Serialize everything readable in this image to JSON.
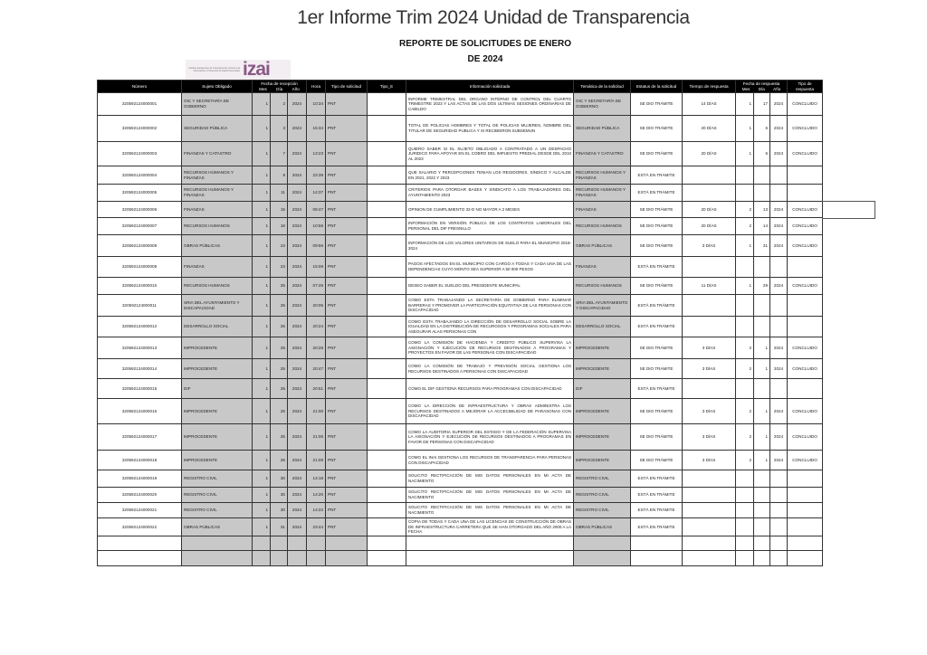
{
  "header": {
    "title": "1er Informe Trim 2024 Unidad de Transparencia",
    "subtitle_line1": "REPORTE DE SOLICITUDES  DE ENERO",
    "subtitle_line2": "DE 2024",
    "logo_text": "izai",
    "logo_small_text": "Instituto Zacatecano de Transparencia, Acceso a la Información y Protección de Datos Personales"
  },
  "columns": {
    "numero": "Número",
    "sujeto": "Sujeto Obligado",
    "fecha_recepcion": "Fecha de recepción",
    "mes": "Mes",
    "dia": "Día",
    "anio": "Año",
    "hora": "Hora",
    "tipo_solicitud": "Tipo de solicitud",
    "tipo_e": "Tipo_E",
    "info": "Información solicitada",
    "tematica": "Temática de la solicitud",
    "estatus": "Estatus de la solicitud",
    "tiempo": "Tiempo de respuesta",
    "fecha_respuesta": "Fecha de respuesta",
    "tipo_respuesta": "Tipo de respuesta"
  },
  "rows": [
    {
      "numero": "320592124000001",
      "sujeto": "OIC Y SECRETARÍA DE GOBIERNO",
      "mes": "1",
      "dia": "2",
      "anio": "2024",
      "hora": "10:34",
      "tipo": "PNT",
      "tipo_e": "",
      "info": "INFORME TRIMESTRAL DEL ORGANO INTERNO DE CONTROL DEL CUARTO TRIMESTRE 2023 Y LAS ACTAS DE LAS DOS ULTIMAS SESIONES ORDINARIAS DE CABILDO",
      "tematica": "OIC Y SECRETARÍA DE GOBIERNO",
      "estatus": "SE DIO TRÁMITE",
      "tiempo": "14 DÍAS",
      "r_mes": "1",
      "r_dia": "17",
      "r_anio": "2024",
      "tipo_resp": "CONCLUIDO"
    },
    {
      "numero": "320592124000002",
      "sujeto": "SEGURIDAD PÚBLICA",
      "mes": "1",
      "dia": "3",
      "anio": "2024",
      "hora": "15:34",
      "tipo": "PNT",
      "tipo_e": "",
      "info": "TOTAL DE POLICIAS HOMBRES Y TOTAL DE POLICIAS MUJERES, NOMBRE DEL TITULAR DE SEGURIDAD PUBLICA Y SI RECIBIERON SUBSEMUN",
      "tematica": "SEGURIDAD PÚBLICA",
      "estatus": "SE DIO TRÁMITE",
      "tiempo": "20 DÍAS",
      "r_mes": "1",
      "r_dia": "6",
      "r_anio": "2024",
      "tipo_resp": "CONCLUIDO"
    },
    {
      "numero": "320592124000003",
      "sujeto": "FINANZAS Y CATASTRO",
      "mes": "1",
      "dia": "7",
      "anio": "2024",
      "hora": "13:23",
      "tipo": "PNT",
      "tipo_e": "",
      "info": "QUIERO SABER SI EL SUJETO OBLIGADO A CONTRATADO A UN DESPACHO JURIDICO PARA APOYAR EN EL COBRO DEL IMPUESTO PREDIAL DESDE DEL 2010 AL 2023",
      "tematica": "FINANZAS Y CATASTRO",
      "estatus": "SE DIO TRÁMITE",
      "tiempo": "20 DÍAS",
      "r_mes": "1",
      "r_dia": "6",
      "r_anio": "2024",
      "tipo_resp": "CONCLUIDO"
    },
    {
      "numero": "320592124000004",
      "sujeto": "RECURSOS HUMANOS Y FINANZAS",
      "mes": "1",
      "dia": "8",
      "anio": "2024",
      "hora": "23:39",
      "tipo": "PNT",
      "tipo_e": "",
      "info": "QUE SALARIO Y PERCEPCIONES TENIAN LOS REGIDORES, SÍNDICO Y ALCALDE EN 2021, 2022 Y 2023",
      "tematica": "RECURSOS HUMANOS Y FINANZAS",
      "estatus": "ESTÁ EN TRÁMITE",
      "tiempo": "",
      "r_mes": "",
      "r_dia": "",
      "r_anio": "",
      "tipo_resp": ""
    },
    {
      "numero": "320592124000005",
      "sujeto": "RECURSOS HUMANOS Y FINANZAS",
      "mes": "1",
      "dia": "11",
      "anio": "2024",
      "hora": "14:37",
      "tipo": "PNT",
      "tipo_e": "",
      "info": "CRITERIOS PARA OTORGAR BASES Y SINDICATO A LOS TRABAJADORES DEL AYUNTAMIENTO 2023",
      "tematica": "RECURSOS HUMANOS Y FINANZAS",
      "estatus": "ESTÁ EN TRÁMITE",
      "tiempo": "",
      "r_mes": "",
      "r_dia": "",
      "r_anio": "",
      "tipo_resp": ""
    },
    {
      "numero": "320592124000006",
      "sujeto": "FINANZAS",
      "mes": "1",
      "dia": "15",
      "anio": "2024",
      "hora": "09:47",
      "tipo": "PNT",
      "tipo_e": "",
      "info": "OPINION DE CUMPLIMIENTO 32-D NO MAYOR A 2 MESES",
      "tematica": "FINANZAS",
      "estatus": "SE DIO TRÁMITE",
      "tiempo": "20 DÍAS",
      "r_mes": "2",
      "r_dia": "13",
      "r_anio": "2024",
      "tipo_resp": "CONCLUIDO"
    },
    {
      "numero": "320592124000007",
      "sujeto": "RECURSOS HUMANOS",
      "mes": "1",
      "dia": "16",
      "anio": "2024",
      "hora": "10:56",
      "tipo": "PNT",
      "tipo_e": "",
      "info": "INFORMACIÓN EN VERSIÓN PÚBLICA DE LOS CONTRATOS LABORALES DEL PERSONAL DEL DIF FRESNILLO",
      "tematica": "RECURSOS HUMANOS",
      "estatus": "SE DIO TRÁMITE",
      "tiempo": "20 DÍAS",
      "r_mes": "2",
      "r_dia": "14",
      "r_anio": "2024",
      "tipo_resp": "CONCLUIDO"
    },
    {
      "numero": "320592124000008",
      "sujeto": "OBRAS PÚBLICAS",
      "mes": "1",
      "dia": "23",
      "anio": "2024",
      "hora": "09:56",
      "tipo": "PNT",
      "tipo_e": "",
      "info": "INFORMACIÓN DE LOS VALORES UNITARIOS DE SUELO PARA EL MUNICIPIO 2018- 2024",
      "tematica": "OBRAS PÚBLICAS",
      "estatus": "SE DIO TRÁMITE",
      "tiempo": "3 DÍAS",
      "r_mes": "1",
      "r_dia": "31",
      "r_anio": "2024",
      "tipo_resp": "CONCLUIDO"
    },
    {
      "numero": "320592124000009",
      "sujeto": "FINANZAS",
      "mes": "1",
      "dia": "23",
      "anio": "2024",
      "hora": "15:09",
      "tipo": "PNT",
      "tipo_e": "",
      "info": "PAGOS AFECTADOS EN EL MUNICIPIO CON CARGO A TODAS Y CADA UNA DE LAS DEPENDENCIAS CUYO MONTO SEA SUPERIOR A 50 000 PESOS",
      "tematica": "FINANZAS",
      "estatus": "ESTÁ EN TRÁMITE",
      "tiempo": "",
      "r_mes": "",
      "r_dia": "",
      "r_anio": "",
      "tipo_resp": ""
    },
    {
      "numero": "320592124000010",
      "sujeto": "RECURSOS HUMANOS",
      "mes": "1",
      "dia": "25",
      "anio": "2024",
      "hora": "07:49",
      "tipo": "PNT",
      "tipo_e": "",
      "info": "DESEO SABER EL SUELDO DEL PRESIDENTE MUNICIPAL",
      "tematica": "RECURSOS HUMANOS",
      "estatus": "SE DIO TRÁMITE",
      "tiempo": "11 DÍAS",
      "r_mes": "1",
      "r_dia": "29",
      "r_anio": "2024",
      "tipo_resp": "CONCLUIDO"
    },
    {
      "numero": "320592124000011",
      "sujeto": "SRIA DEL AYUNTAMIENTO Y DISCAPACIDAD",
      "mes": "1",
      "dia": "25",
      "anio": "2024",
      "hora": "20:05",
      "tipo": "PNT",
      "tipo_e": "",
      "info": "COMO ESTA TRABAJANDO LA SECRETARÍA DE GOBIERNO PARA ELIMINAR BARRERAS Y PROMOVER LA PARTICIPACIÓN EQUITATIVA DE LAS PERSONAS CON DISCAPACIDAD",
      "tematica": "SRIA DEL AYUNTAMIENTO Y DISCAPACIDAD",
      "estatus": "ESTÁ EN TRÁMITE",
      "tiempo": "",
      "r_mes": "",
      "r_dia": "",
      "r_anio": "",
      "tipo_resp": ""
    },
    {
      "numero": "320592124000012",
      "sujeto": "DESARROLLO SOCIAL",
      "mes": "1",
      "dia": "25",
      "anio": "2024",
      "hora": "20:24",
      "tipo": "PNT",
      "tipo_e": "",
      "info": "COMO ESTA TRABAJANDO LA DIRECCIÓN DE DESARROLLO SOCIAL SOBRE LA IGUALDAD EN LA DISTRIBUCIÓN DE RECUROSOS Y PROGRAMAS SOCIALES PARA ASEGURAR ALAS PERSONAS CON",
      "tematica": "DESARROLLO SOCIAL",
      "estatus": "ESTÁ EN TRÁMITE",
      "tiempo": "",
      "r_mes": "",
      "r_dia": "",
      "r_anio": "",
      "tipo_resp": ""
    },
    {
      "numero": "320592124000013",
      "sujeto": "IMPROCEDENTE",
      "mes": "1",
      "dia": "25",
      "anio": "2024",
      "hora": "20:28",
      "tipo": "PNT",
      "tipo_e": "",
      "info": "COMO LA COMISIÓN DE HACIENDA Y CREDITO PÚBLICO SUPERVISA LA ASIGNACIÓN Y EJECUCIÓN DE RECURSOS DESTINADOS A PROGRAMAS Y PROYECTOS EN FAVOR DE LAS PERSONAS CON DISCAPACIDAD",
      "tematica": "IMPROCEDENTE",
      "estatus": "SE DIO TRÁMITE",
      "tiempo": "3 DÍAS",
      "r_mes": "2",
      "r_dia": "1",
      "r_anio": "2024",
      "tipo_resp": "CONCLUIDO"
    },
    {
      "numero": "320592124000014",
      "sujeto": "IMPROCEDENTE",
      "mes": "1",
      "dia": "25",
      "anio": "2024",
      "hora": "20:47",
      "tipo": "PNT",
      "tipo_e": "",
      "info": "COMO LA COMISIÓN DE TRABAJO Y PREVISIÓN SOCIAL GESTIONA LOS RECURSOS DESTINADOS A PERSONAS CON DISCAPACIDAD",
      "tematica": "IMPROCEDENTE",
      "estatus": "SE DIO TRÁMITE",
      "tiempo": "3 DÍAS",
      "r_mes": "2",
      "r_dia": "1",
      "r_anio": "2024",
      "tipo_resp": "CONCLUIDO"
    },
    {
      "numero": "320592124000015",
      "sujeto": "DIF",
      "mes": "1",
      "dia": "25",
      "anio": "2024",
      "hora": "20:51",
      "tipo": "PNT",
      "tipo_e": "",
      "info": "COMO EL DIF GESTIONA RECURSOS PARA PROGRAMAS CON DISCAPACIDAD",
      "tematica": "DIF",
      "estatus": "ESTÁ EN TRÁMITE",
      "tiempo": "",
      "r_mes": "",
      "r_dia": "",
      "r_anio": "",
      "tipo_resp": ""
    },
    {
      "numero": "320592124000016",
      "sujeto": "IMPROCEDENTE",
      "mes": "1",
      "dia": "25",
      "anio": "2024",
      "hora": "21:00",
      "tipo": "PNT",
      "tipo_e": "",
      "info": "COMO LA DIRECCIÓN DE INFRAESTRUCTURA Y OBRAS ADMINISTRA LOS RECURSOS DESTINADOS A MEJORAR LA ACCECIBILIDAD DE PARASONAS CON DISCAPACIDAD",
      "tematica": "IMPROCEDENTE",
      "estatus": "SE DIO TRÁMITE",
      "tiempo": "3 DÍAS",
      "r_mes": "2",
      "r_dia": "1",
      "r_anio": "2024",
      "tipo_resp": "CONCLUIDO"
    },
    {
      "numero": "320592124000017",
      "sujeto": "IMPROCEDENTE",
      "mes": "1",
      "dia": "25",
      "anio": "2024",
      "hora": "21:06",
      "tipo": "PNT",
      "tipo_e": "",
      "info": "COMO LA AUDITORIA SUPERIOR DEL ESTADO Y DE LA FEDERACIÓN SUPERVISA LA ASIGNACIÓN Y EJECUCIÓN DE RECURSOS DESTINADOS A PROGRAMAS EN FAVOR DE PERSONAS CON DISCAPACIDAD",
      "tematica": "IMPROCEDENTE",
      "estatus": "SE DIO TRÁMITE",
      "tiempo": "3 DÍAS",
      "r_mes": "2",
      "r_dia": "1",
      "r_anio": "2024",
      "tipo_resp": "CONCLUIDO"
    },
    {
      "numero": "320592124000018",
      "sujeto": "IMPROCEDENTE",
      "mes": "1",
      "dia": "25",
      "anio": "2024",
      "hora": "21:09",
      "tipo": "PNT",
      "tipo_e": "",
      "info": "COMO EL INAI GESTIONA LOS RECURSOS DE TRANSPARENCIA PARA PERSONAS CON DISCAPACIDAD",
      "tematica": "IMPROCEDENTE",
      "estatus": "SE DIO TRÁMITE",
      "tiempo": "3 DÍAS",
      "r_mes": "2",
      "r_dia": "1",
      "r_anio": "2024",
      "tipo_resp": "CONCLUIDO"
    },
    {
      "numero": "320592124000019",
      "sujeto": "REGISTRO CIVIL",
      "mes": "1",
      "dia": "30",
      "anio": "2024",
      "hora": "14:18",
      "tipo": "PNT",
      "tipo_e": "",
      "info": "SOLICITO RECTIFICACIÓN DE MIS DATOS PERSONALES EN MI ACTA DE NACIMIENTO",
      "tematica": "REGISTRO CIVIL",
      "estatus": "ESTÁ EN TRÁMITE",
      "tiempo": "",
      "r_mes": "",
      "r_dia": "",
      "r_anio": "",
      "tipo_resp": ""
    },
    {
      "numero": "320592124000020",
      "sujeto": "REGISTRO CIVIL",
      "mes": "1",
      "dia": "30",
      "anio": "2024",
      "hora": "14:20",
      "tipo": "PNT",
      "tipo_e": "",
      "info": "SOLICITO RECTIFICACIÓN DE MIS DATOS PERSONALES EN MI ACTA DE NACIMIENTO",
      "tematica": "REGISTRO CIVIL",
      "estatus": "ESTÁ EN TRÁMITE",
      "tiempo": "",
      "r_mes": "",
      "r_dia": "",
      "r_anio": "",
      "tipo_resp": ""
    },
    {
      "numero": "320592124000021",
      "sujeto": "REGISTRO CIVIL",
      "mes": "1",
      "dia": "30",
      "anio": "2024",
      "hora": "14:22",
      "tipo": "PNT",
      "tipo_e": "",
      "info": "SOLICITO RECTIFICACIÓN DE MIS DATOS PERSONALES EN MI ACTA DE NACIMIENTO",
      "tematica": "REGISTRO CIVIL",
      "estatus": "ESTÁ EN TRÁMITE",
      "tiempo": "",
      "r_mes": "",
      "r_dia": "",
      "r_anio": "",
      "tipo_resp": ""
    },
    {
      "numero": "320592124000022",
      "sujeto": "OBRAS PÚBLICAS",
      "mes": "1",
      "dia": "31",
      "anio": "2024",
      "hora": "23:44",
      "tipo": "PNT",
      "tipo_e": "",
      "info": "COPIA DE TODAS Y CADA UNA DE LAS LICENCIAS DE CONSTRUCCIÓN DE OBRAS DE INFRAESTRUCTURA CARRETERA QUE SE HAN OTORGADO DEL AÑO 2000 A LA FECHA",
      "tematica": "OBRAS PÚBLICAS",
      "estatus": "ESTÁ EN TRÁMITE",
      "tiempo": "",
      "r_mes": "",
      "r_dia": "",
      "r_anio": "",
      "tipo_resp": ""
    },
    {
      "numero": "",
      "sujeto": "",
      "mes": "",
      "dia": "",
      "anio": "",
      "hora": "",
      "tipo": "",
      "tipo_e": "",
      "info": "",
      "tematica": "",
      "estatus": "",
      "tiempo": "",
      "r_mes": "",
      "r_dia": "",
      "r_anio": "",
      "tipo_resp": ""
    },
    {
      "numero": "",
      "sujeto": "",
      "mes": "",
      "dia": "",
      "anio": "",
      "hora": "",
      "tipo": "",
      "tipo_e": "",
      "info": "",
      "tematica": "",
      "estatus": "",
      "tiempo": "",
      "r_mes": "",
      "r_dia": "",
      "r_anio": "",
      "tipo_resp": ""
    }
  ]
}
